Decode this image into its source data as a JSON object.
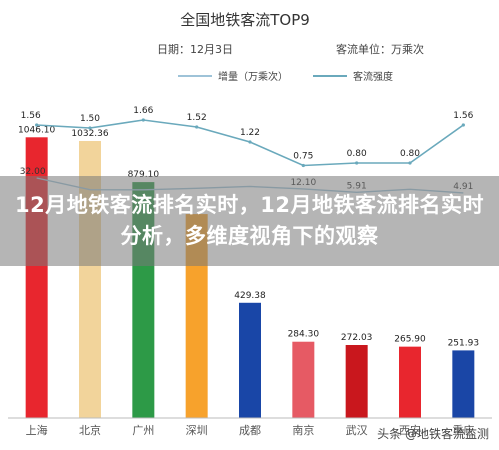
{
  "overlay": {
    "title": "12月地铁客流排名实时，12月地铁客流排名实时分析，多维度视角下的观察"
  },
  "watermark": {
    "text": "头条 @地铁客流监测"
  },
  "chart_data": {
    "type": "bar",
    "title": "全国地铁客流TOP9",
    "subtitle_date": "日期：12月3日",
    "subtitle_unit": "客流单位：万乘次",
    "categories": [
      "上海",
      "北京",
      "广州",
      "深圳",
      "成都",
      "南京",
      "武汉",
      "西安",
      "重庆"
    ],
    "bar_series": {
      "values": [
        1046.1,
        1032.36,
        879.1,
        760.0,
        429.38,
        284.3,
        272.03,
        265.9,
        251.93
      ],
      "labels": [
        "1046.10",
        "1032.36",
        "879.10",
        "",
        "429.38",
        "284.30",
        "272.03",
        "265.90",
        "251.93"
      ],
      "colors": [
        "#e8262e",
        "#f2d49b",
        "#2d9a47",
        "#f7a22c",
        "#1946a7",
        "#e65a64",
        "#c9171d",
        "#e8262e",
        "#1a46a6"
      ]
    },
    "line_increment": {
      "name": "增量（万乘次）",
      "color": "#9ec3d8",
      "values": [
        32.0,
        null,
        null,
        null,
        null,
        12.1,
        5.91,
        null,
        4.91
      ],
      "labels": [
        "32.00",
        "",
        "",
        "",
        "",
        "12.10",
        "5.91",
        "",
        "4.91"
      ]
    },
    "line_intensity": {
      "name": "客流强度",
      "color": "#6aa9bc",
      "values": [
        1.56,
        1.5,
        1.66,
        1.52,
        1.22,
        0.75,
        0.8,
        0.8,
        1.56
      ],
      "labels": [
        "1.56",
        "1.50",
        "1.66",
        "1.52",
        "1.22",
        "0.75",
        "0.80",
        "0.80",
        "1.56"
      ]
    },
    "ylim": [
      0,
      1200
    ],
    "grid": false,
    "legend_position": "top"
  }
}
